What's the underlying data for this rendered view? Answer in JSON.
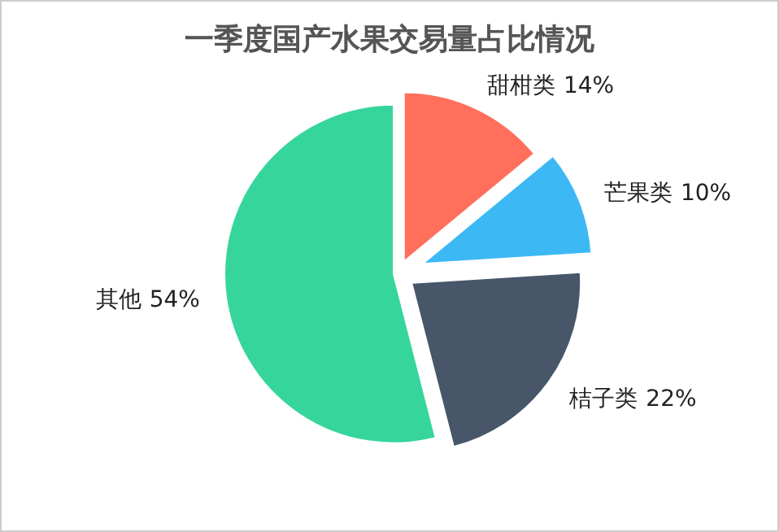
{
  "chart_data": {
    "type": "pie",
    "title": "一季度国产水果交易量占比情况",
    "categories": [
      "甜柑类",
      "芒果类",
      "桔子类",
      "其他"
    ],
    "values": [
      14,
      10,
      22,
      54
    ],
    "colors": [
      "#ff6f5b",
      "#3cb9f5",
      "#475669",
      "#36d59c"
    ],
    "value_labels": [
      "14%",
      "10%",
      "22%",
      "54%"
    ]
  }
}
